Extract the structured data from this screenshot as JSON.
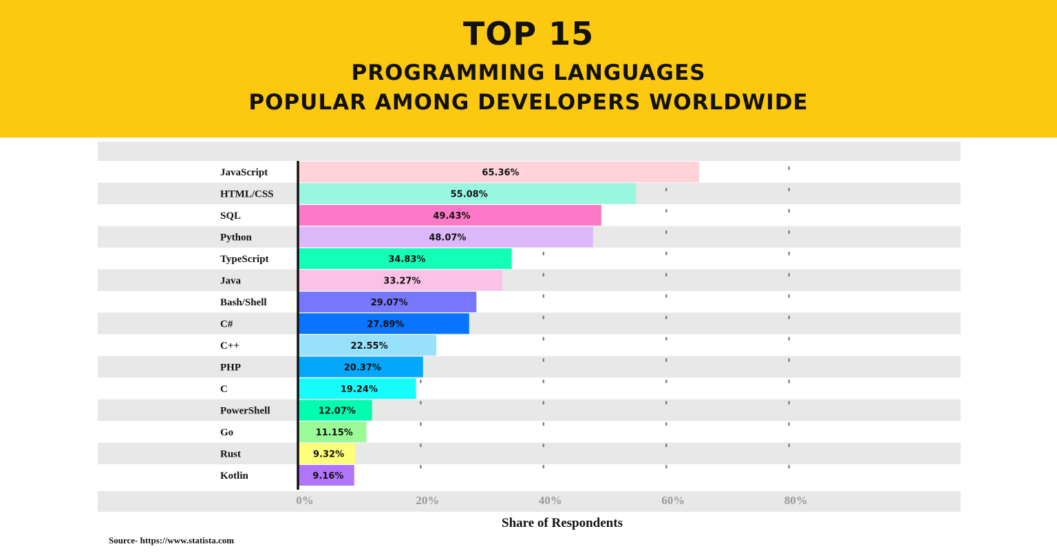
{
  "header": {
    "line1": "TOP 15",
    "line2": "PROGRAMMING LANGUAGES",
    "line3": "POPULAR AMONG DEVELOPERS WORLDWIDE"
  },
  "source": "Source- https://www.statista.com",
  "colors": {
    "banner": "#fdc810",
    "stripe": "#e8e8e8",
    "axis": "#111111"
  },
  "chart_data": {
    "type": "bar",
    "orientation": "horizontal",
    "categories": [
      "JavaScript",
      "HTML/CSS",
      "SQL",
      "Python",
      "TypeScript",
      "Java",
      "Bash/Shell",
      "C#",
      "C++",
      "PHP",
      "C",
      "PowerShell",
      "Go",
      "Rust",
      "Kotlin"
    ],
    "values": [
      65.36,
      55.08,
      49.43,
      48.07,
      34.83,
      33.27,
      29.07,
      27.89,
      22.55,
      20.37,
      19.24,
      12.07,
      11.15,
      9.32,
      9.16
    ],
    "value_labels": [
      "65.36%",
      "55.08%",
      "49.43%",
      "48.07%",
      "34.83%",
      "33.27%",
      "29.07%",
      "27.89%",
      "22.55%",
      "20.37%",
      "19.24%",
      "12.07%",
      "11.15%",
      "9.32%",
      "9.16%"
    ],
    "bar_colors": [
      "#ffd3d8",
      "#97f8df",
      "#fd78c7",
      "#dcb8fb",
      "#13feb6",
      "#fbc1e6",
      "#7778fd",
      "#0975fe",
      "#98e1fc",
      "#03a7fc",
      "#16fdfe",
      "#03fcad",
      "#9bfc97",
      "#fdfe7a",
      "#b175fc"
    ],
    "xlabel": "Share of Respondents",
    "ylabel": "",
    "xlim": [
      0,
      80
    ],
    "xticks": [
      0,
      20,
      40,
      60,
      80
    ],
    "xtick_labels": [
      "0%",
      "20%",
      "40%",
      "60%",
      "80%"
    ],
    "grid": "dashed vertical",
    "legend": "none"
  }
}
